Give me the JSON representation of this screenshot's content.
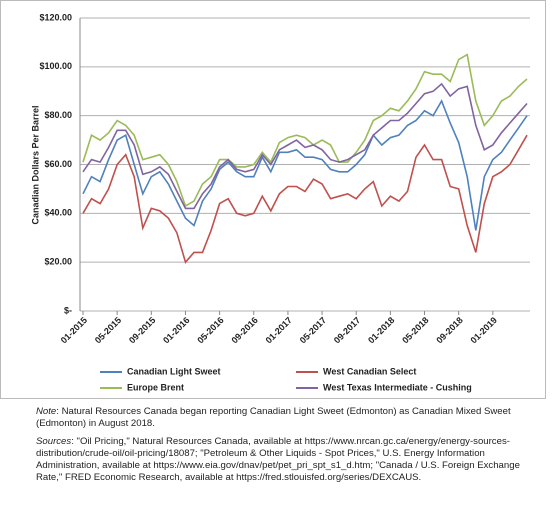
{
  "chart_data": {
    "type": "line",
    "y_label": "Canadian Dollars Per Barrel",
    "categories": [
      "01-2015",
      null,
      null,
      null,
      "05-2015",
      null,
      null,
      null,
      "09-2015",
      null,
      null,
      null,
      "01-2016",
      null,
      null,
      null,
      "05-2016",
      null,
      null,
      null,
      "09-2016",
      null,
      null,
      null,
      "01-2017",
      null,
      null,
      null,
      "05-2017",
      null,
      null,
      null,
      "09-2017",
      null,
      null,
      null,
      "01-2018",
      null,
      null,
      null,
      "05-2018",
      null,
      null,
      null,
      "09-2018",
      null,
      null,
      null,
      "01-2019",
      null,
      null,
      null,
      null
    ],
    "series": [
      {
        "name": "Canadian Light Sweet",
        "color": "#4f81bd",
        "values": [
          48,
          55,
          53,
          62,
          70,
          72,
          60,
          48,
          55,
          57,
          52,
          45,
          38,
          35,
          45,
          50,
          58,
          61,
          57,
          55,
          55,
          63,
          57,
          65,
          65,
          66,
          63,
          63,
          62,
          58,
          57,
          57,
          60,
          64,
          72,
          68,
          71,
          72,
          76,
          78,
          82,
          80,
          86,
          77,
          69,
          55,
          33,
          55,
          62,
          65,
          70,
          75,
          80
        ]
      },
      {
        "name": "West Canadian Select",
        "color": "#c0504d",
        "values": [
          40,
          46,
          44,
          50,
          60,
          64,
          55,
          34,
          42,
          41,
          38,
          32,
          20,
          24,
          24,
          33,
          44,
          46,
          40,
          39,
          40,
          47,
          41,
          48,
          51,
          51,
          49,
          54,
          52,
          46,
          47,
          48,
          46,
          50,
          53,
          43,
          47,
          45,
          49,
          63,
          68,
          62,
          62,
          51,
          50,
          35,
          24,
          44,
          55,
          57,
          60,
          66,
          72
        ]
      },
      {
        "name": "Europe Brent",
        "color": "#9bbb59",
        "values": [
          61,
          72,
          70,
          73,
          78,
          76,
          72,
          62,
          63,
          64,
          60,
          53,
          43,
          45,
          52,
          55,
          62,
          62,
          59,
          59,
          60,
          65,
          61,
          69,
          71,
          72,
          71,
          68,
          70,
          68,
          61,
          61,
          65,
          70,
          78,
          80,
          83,
          82,
          86,
          91,
          98,
          97,
          97,
          94,
          103,
          105,
          86,
          76,
          80,
          86,
          88,
          92,
          95
        ]
      },
      {
        "name": "West Texas Intermediate - Cushing",
        "color": "#8064a2",
        "values": [
          57,
          62,
          61,
          67,
          74,
          74,
          68,
          56,
          57,
          59,
          56,
          49,
          42,
          42,
          48,
          52,
          59,
          62,
          58,
          57,
          58,
          64,
          60,
          66,
          68,
          70,
          67,
          68,
          66,
          62,
          61,
          62,
          64,
          66,
          72,
          75,
          78,
          78,
          81,
          85,
          89,
          90,
          93,
          88,
          91,
          92,
          76,
          66,
          68,
          73,
          77,
          81,
          85
        ]
      }
    ],
    "ylim": [
      0,
      120
    ],
    "yticks": [
      {
        "value": 0,
        "label": "$-"
      },
      {
        "value": 20,
        "label": "$20.00"
      },
      {
        "value": 40,
        "label": "$40.00"
      },
      {
        "value": 60,
        "label": "$60.00"
      },
      {
        "value": 80,
        "label": "$80.00"
      },
      {
        "value": 100,
        "label": "$100.00"
      },
      {
        "value": 120,
        "label": "$120.00"
      }
    ],
    "grid": true,
    "legend": "bottom"
  },
  "notes": {
    "note_label": "Note",
    "note_text": ": Natural Resources Canada began reporting Canadian Light Sweet (Edmonton) as Canadian Mixed Sweet (Edmonton) in August 2018.",
    "sources_label": "Sources",
    "sources_text": ": \"Oil Pricing,\" Natural Resources Canada, available at https://www.nrcan.gc.ca/energy/energy-sources-distribution/crude-oil/oil-pricing/18087; \"Petroleum & Other Liquids - Spot Prices,\" U.S. Energy Information Administration, available at https://www.eia.gov/dnav/pet/pet_pri_spt_s1_d.htm; \"Canada / U.S. Foreign Exchange Rate,\" FRED Economic Research, available at https://fred.stlouisfed.org/series/DEXCAUS."
  }
}
